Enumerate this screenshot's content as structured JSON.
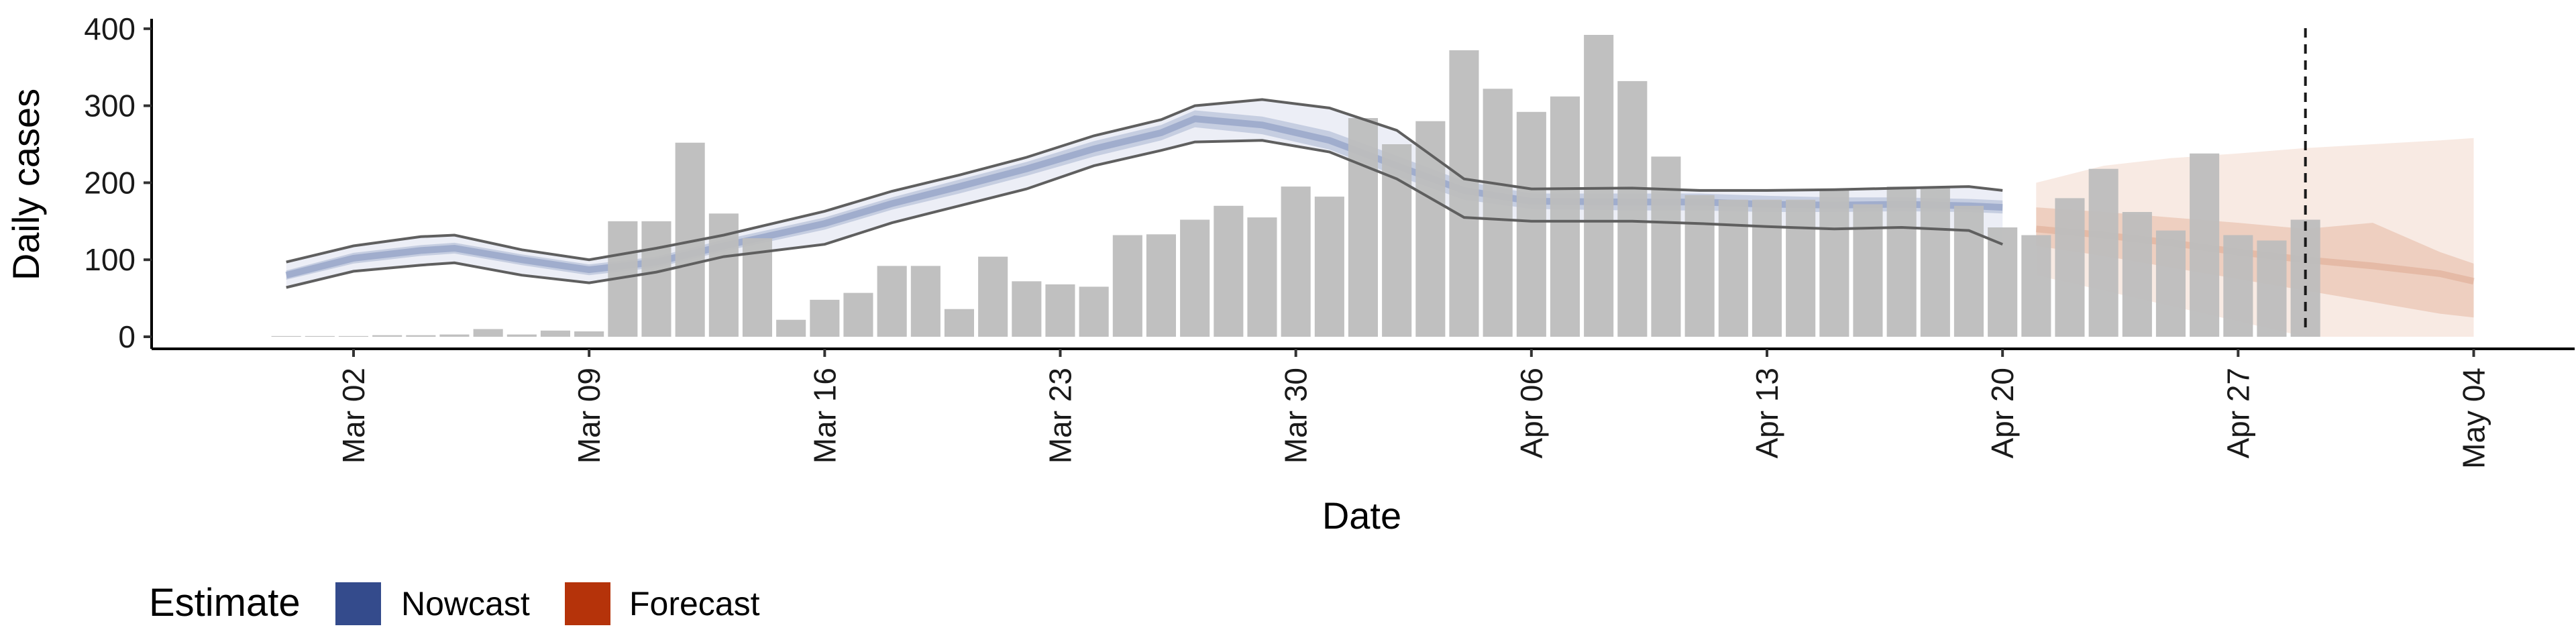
{
  "chart_data": {
    "type": "bar",
    "xlabel": "Date",
    "ylabel": "Daily cases",
    "ylim": [
      0,
      420
    ],
    "y_ticks": [
      0,
      100,
      200,
      300,
      400
    ],
    "x_tick_labels": [
      "Mar 02",
      "Mar 09",
      "Mar 16",
      "Mar 23",
      "Mar 30",
      "Apr 06",
      "Apr 13",
      "Apr 20",
      "Apr 27",
      "May 04"
    ],
    "x_tick_dates": [
      "2020-03-02",
      "2020-03-09",
      "2020-03-16",
      "2020-03-23",
      "2020-03-30",
      "2020-04-06",
      "2020-04-13",
      "2020-04-20",
      "2020-04-27",
      "2020-05-04"
    ],
    "xlim": [
      "2020-02-25",
      "2020-05-07"
    ],
    "dates": [
      "2020-02-29",
      "2020-03-01",
      "2020-03-02",
      "2020-03-03",
      "2020-03-04",
      "2020-03-05",
      "2020-03-06",
      "2020-03-07",
      "2020-03-08",
      "2020-03-09",
      "2020-03-10",
      "2020-03-11",
      "2020-03-12",
      "2020-03-13",
      "2020-03-14",
      "2020-03-15",
      "2020-03-16",
      "2020-03-17",
      "2020-03-18",
      "2020-03-19",
      "2020-03-20",
      "2020-03-21",
      "2020-03-22",
      "2020-03-23",
      "2020-03-24",
      "2020-03-25",
      "2020-03-26",
      "2020-03-27",
      "2020-03-28",
      "2020-03-29",
      "2020-03-30",
      "2020-03-31",
      "2020-04-01",
      "2020-04-02",
      "2020-04-03",
      "2020-04-04",
      "2020-04-05",
      "2020-04-06",
      "2020-04-07",
      "2020-04-08",
      "2020-04-09",
      "2020-04-10",
      "2020-04-11",
      "2020-04-12",
      "2020-04-13",
      "2020-04-14",
      "2020-04-15",
      "2020-04-16",
      "2020-04-17",
      "2020-04-18",
      "2020-04-19",
      "2020-04-20",
      "2020-04-21",
      "2020-04-22",
      "2020-04-23",
      "2020-04-24",
      "2020-04-25",
      "2020-04-26",
      "2020-04-27",
      "2020-04-28",
      "2020-04-29"
    ],
    "cases": [
      1,
      1,
      1,
      2,
      2,
      3,
      10,
      3,
      8,
      7,
      150,
      150,
      252,
      160,
      128,
      22,
      48,
      57,
      92,
      92,
      36,
      104,
      72,
      68,
      65,
      132,
      133,
      152,
      170,
      155,
      195,
      182,
      284,
      250,
      280,
      372,
      322,
      292,
      312,
      392,
      332,
      234,
      184,
      178,
      178,
      178,
      192,
      172,
      195,
      195,
      170,
      142,
      132,
      180,
      218,
      162,
      138,
      238,
      132,
      125,
      152
    ],
    "series": [
      {
        "name": "Nowcast",
        "color": "#344b8c",
        "dates": [
          "2020-02-29",
          "2020-03-02",
          "2020-03-04",
          "2020-03-05",
          "2020-03-07",
          "2020-03-09",
          "2020-03-11",
          "2020-03-13",
          "2020-03-16",
          "2020-03-18",
          "2020-03-20",
          "2020-03-22",
          "2020-03-24",
          "2020-03-26",
          "2020-03-27",
          "2020-03-29",
          "2020-03-31",
          "2020-04-02",
          "2020-04-04",
          "2020-04-06",
          "2020-04-09",
          "2020-04-11",
          "2020-04-13",
          "2020-04-15",
          "2020-04-17",
          "2020-04-19",
          "2020-04-20"
        ],
        "median": [
          80,
          102,
          112,
          115,
          100,
          87,
          97,
          118,
          147,
          173,
          195,
          218,
          244,
          265,
          283,
          275,
          255,
          222,
          190,
          176,
          175,
          175,
          172,
          171,
          172,
          170,
          168
        ],
        "inner_lower": [
          74,
          95,
          105,
          108,
          93,
          80,
          90,
          111,
          139,
          165,
          186,
          209,
          234,
          255,
          272,
          263,
          243,
          209,
          178,
          166,
          164,
          164,
          162,
          162,
          163,
          162,
          160
        ],
        "inner_upper": [
          86,
          109,
          119,
          122,
          107,
          94,
          104,
          126,
          155,
          181,
          204,
          227,
          254,
          275,
          294,
          286,
          267,
          235,
          202,
          186,
          186,
          186,
          183,
          181,
          181,
          179,
          177
        ],
        "outer_lower": [
          64,
          85,
          93,
          96,
          80,
          70,
          84,
          104,
          120,
          148,
          170,
          192,
          222,
          242,
          253,
          255,
          240,
          205,
          155,
          150,
          150,
          147,
          143,
          140,
          142,
          138,
          120
        ],
        "outer_upper": [
          97,
          118,
          130,
          132,
          113,
          100,
          115,
          132,
          163,
          189,
          210,
          233,
          261,
          282,
          300,
          308,
          297,
          268,
          205,
          192,
          193,
          190,
          190,
          191,
          193,
          195,
          190
        ]
      },
      {
        "name": "Forecast",
        "color": "#b5330a",
        "dates": [
          "2020-04-21",
          "2020-04-23",
          "2020-04-25",
          "2020-04-27",
          "2020-04-29",
          "2020-05-01",
          "2020-05-03",
          "2020-05-04"
        ],
        "median": [
          140,
          132,
          122,
          110,
          100,
          92,
          82,
          72
        ],
        "inner_lower": [
          118,
          105,
          90,
          75,
          60,
          45,
          30,
          25
        ],
        "inner_upper": [
          168,
          162,
          155,
          148,
          140,
          148,
          110,
          95
        ],
        "outer_lower": [
          80,
          60,
          40,
          20,
          0,
          0,
          0,
          0
        ],
        "outer_upper": [
          200,
          222,
          232,
          238,
          245,
          250,
          255,
          258
        ]
      }
    ],
    "vline_date": "2020-04-29",
    "legend_title": "Estimate",
    "legend": [
      {
        "label": "Nowcast",
        "color": "#344b8c"
      },
      {
        "label": "Forecast",
        "color": "#b5330a"
      }
    ],
    "legend_position": "bottom-left",
    "grid": false,
    "bar_color": "#bdbdbd"
  }
}
